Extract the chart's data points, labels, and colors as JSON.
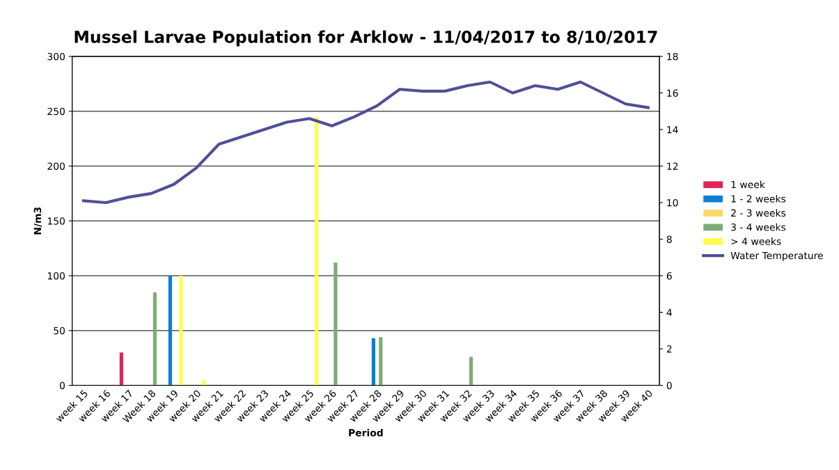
{
  "chart_data": {
    "type": "bar",
    "title": "Mussel Larvae Population for Arklow - 11/04/2017 to 8/10/2017",
    "xlabel": "Period",
    "ylabel": "N/m3",
    "categories": [
      "week 15",
      "week 16",
      "week 17",
      "Week 18",
      "week 19",
      "week 20",
      "week 21",
      "week 22",
      "week 23",
      "week 24",
      "week 25",
      "week 26",
      "week 27",
      "week 28",
      "week 29",
      "week 30",
      "week 31",
      "week 32",
      "week 33",
      "week 34",
      "week 35",
      "week 36",
      "week 37",
      "week 38",
      "week 39",
      "week 40"
    ],
    "series": [
      {
        "name": "1 week",
        "color": "#e0245a",
        "values": [
          0,
          0,
          30,
          0,
          0,
          0,
          0,
          0,
          0,
          0,
          0,
          0,
          0,
          0,
          0,
          0,
          0,
          0,
          0,
          0,
          0,
          0,
          0,
          0,
          0,
          0
        ]
      },
      {
        "name": "1 - 2 weeks",
        "color": "#0a7fd6",
        "values": [
          0,
          0,
          0,
          0,
          100,
          0,
          0,
          0,
          0,
          0,
          0,
          0,
          0,
          43,
          0,
          0,
          0,
          0,
          0,
          0,
          0,
          0,
          0,
          0,
          0,
          0
        ]
      },
      {
        "name": "2 - 3 weeks",
        "color": "#ffd966",
        "values": [
          0,
          0,
          0,
          0,
          0,
          0,
          0,
          0,
          0,
          0,
          0,
          0,
          0,
          0,
          0,
          0,
          0,
          0,
          0,
          0,
          0,
          0,
          0,
          0,
          0,
          0
        ]
      },
      {
        "name": "3 - 4 weeks",
        "color": "#7fab78",
        "values": [
          0,
          0,
          0,
          85,
          0,
          0,
          0,
          0,
          0,
          0,
          0,
          112,
          0,
          44,
          0,
          0,
          0,
          26,
          0,
          0,
          0,
          0,
          0,
          0,
          0,
          0
        ]
      },
      {
        "name": "> 4 weeks",
        "color": "#ffff4d",
        "values": [
          0,
          0,
          0,
          0,
          100,
          5,
          0,
          0,
          0,
          0,
          245,
          0,
          0,
          0,
          0,
          0,
          0,
          0,
          0,
          0,
          0,
          0,
          0,
          0,
          0,
          0
        ]
      },
      {
        "name": "Water Temperature",
        "type": "line",
        "axis": "y2",
        "color": "#504f96",
        "values": [
          10.1,
          10.0,
          10.3,
          10.5,
          11.0,
          11.9,
          13.2,
          13.6,
          14.0,
          14.4,
          14.6,
          14.2,
          14.7,
          15.3,
          16.2,
          16.1,
          16.1,
          16.4,
          16.6,
          16.0,
          16.4,
          16.2,
          16.6,
          16.0,
          15.4,
          15.2
        ]
      }
    ],
    "ylim": [
      0,
      300
    ],
    "yticks": [
      0,
      50,
      100,
      150,
      200,
      250,
      300
    ],
    "y2lim": [
      0,
      18
    ],
    "y2ticks": [
      0,
      2,
      4,
      6,
      8,
      10,
      12,
      14,
      16,
      18
    ],
    "grid": "y",
    "legend": "right"
  }
}
